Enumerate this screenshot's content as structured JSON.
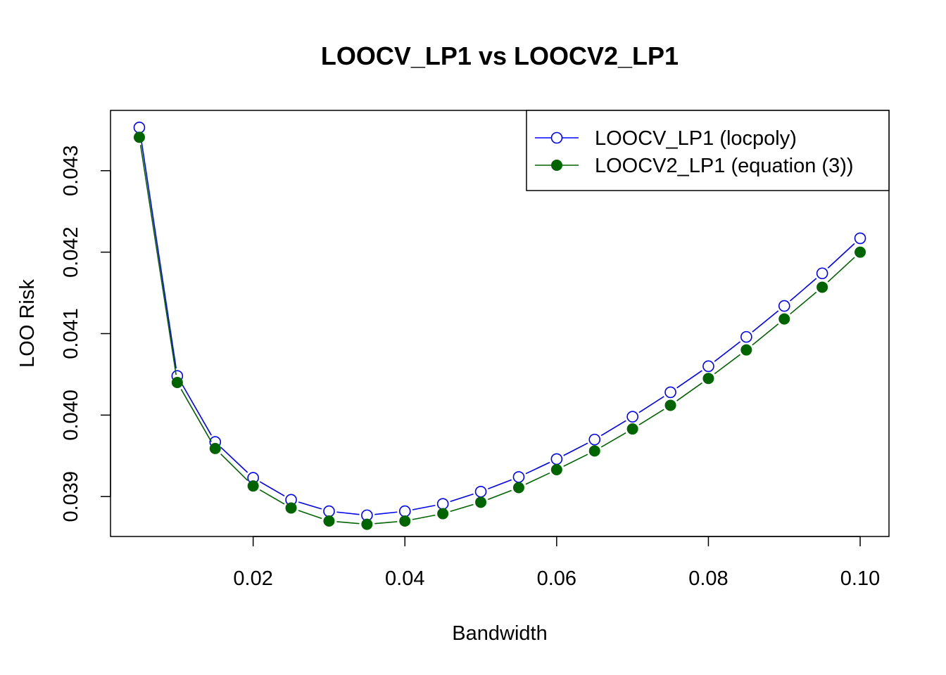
{
  "chart_data": {
    "type": "line",
    "title": "LOOCV_LP1 vs LOOCV2_LP1",
    "xlabel": "Bandwidth",
    "ylabel": "LOO Risk",
    "xlim": [
      0.0012,
      0.1038
    ],
    "ylim": [
      0.03851,
      0.04374
    ],
    "x_ticks": [
      "0.02",
      "0.04",
      "0.06",
      "0.08",
      "0.10"
    ],
    "y_ticks": [
      "0.039",
      "0.040",
      "0.041",
      "0.042",
      "0.043"
    ],
    "grid": false,
    "legend_position": "top-right",
    "x": [
      0.005,
      0.01,
      0.015,
      0.02,
      0.025,
      0.03,
      0.035,
      0.04,
      0.045,
      0.05,
      0.055,
      0.06,
      0.065,
      0.07,
      0.075,
      0.08,
      0.085,
      0.09,
      0.095,
      0.1
    ],
    "series": [
      {
        "name": "LOOCV_LP1 (locpoly)",
        "color": "#0000ff",
        "marker": "open-circle",
        "values": [
          0.04353,
          0.04048,
          0.03967,
          0.03923,
          0.03896,
          0.03882,
          0.03877,
          0.03882,
          0.03891,
          0.03906,
          0.03924,
          0.03946,
          0.0397,
          0.03998,
          0.04028,
          0.0406,
          0.04096,
          0.04134,
          0.04174,
          0.04217
        ]
      },
      {
        "name": "LOOCV2_LP1 (equation (3))",
        "color": "#006400",
        "marker": "filled-circle",
        "values": [
          0.04341,
          0.0404,
          0.03959,
          0.03913,
          0.03886,
          0.0387,
          0.03866,
          0.0387,
          0.03879,
          0.03893,
          0.03911,
          0.03933,
          0.03956,
          0.03983,
          0.04012,
          0.04045,
          0.0408,
          0.04118,
          0.04157,
          0.042
        ]
      }
    ]
  }
}
